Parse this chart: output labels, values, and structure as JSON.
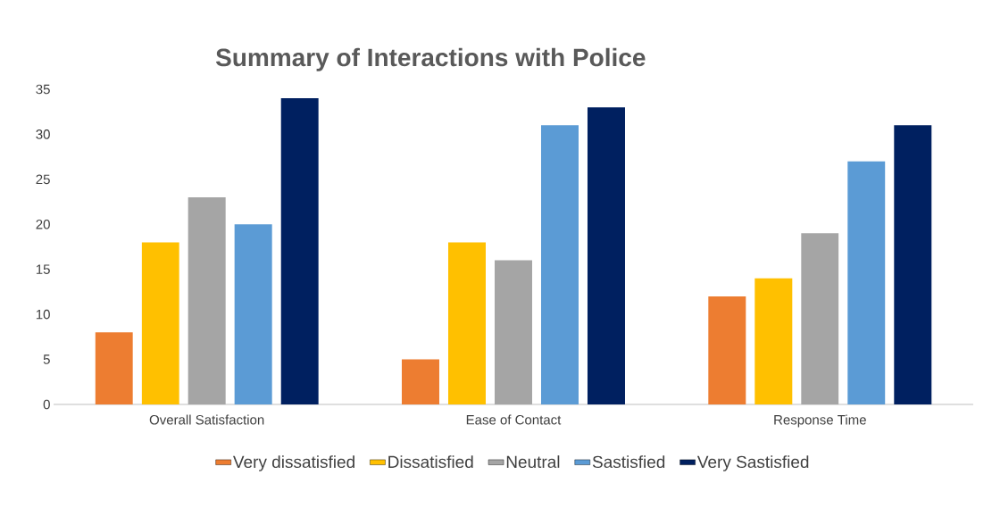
{
  "chart_data": {
    "type": "bar",
    "title": "Summary of Interactions with Police",
    "categories": [
      "Overall Satisfaction",
      "Ease of Contact",
      "Response Time"
    ],
    "series": [
      {
        "name": "Very dissatisfied",
        "color": "#ed7d31",
        "values": [
          8,
          5,
          12
        ]
      },
      {
        "name": "Dissatisfied",
        "color": "#ffc000",
        "values": [
          18,
          18,
          14
        ]
      },
      {
        "name": "Neutral",
        "color": "#a5a5a5",
        "values": [
          23,
          16,
          19
        ]
      },
      {
        "name": "Sastisfied",
        "color": "#5b9bd5",
        "values": [
          20,
          31,
          27
        ]
      },
      {
        "name": "Very Sastisfied",
        "color": "#002060",
        "values": [
          34,
          33,
          31
        ]
      }
    ],
    "ylim": [
      0,
      35
    ],
    "yticks": [
      0,
      5,
      10,
      15,
      20,
      25,
      30,
      35
    ],
    "grid": false,
    "legend": "bottom"
  }
}
